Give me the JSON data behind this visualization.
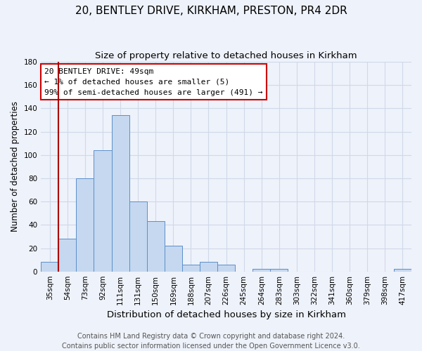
{
  "title": "20, BENTLEY DRIVE, KIRKHAM, PRESTON, PR4 2DR",
  "subtitle": "Size of property relative to detached houses in Kirkham",
  "xlabel": "Distribution of detached houses by size in Kirkham",
  "ylabel": "Number of detached properties",
  "categories": [
    "35sqm",
    "54sqm",
    "73sqm",
    "92sqm",
    "111sqm",
    "131sqm",
    "150sqm",
    "169sqm",
    "188sqm",
    "207sqm",
    "226sqm",
    "245sqm",
    "264sqm",
    "283sqm",
    "303sqm",
    "322sqm",
    "341sqm",
    "360sqm",
    "379sqm",
    "398sqm",
    "417sqm"
  ],
  "values": [
    8,
    28,
    80,
    104,
    134,
    60,
    43,
    22,
    6,
    8,
    6,
    0,
    2,
    2,
    0,
    0,
    0,
    0,
    0,
    0,
    2
  ],
  "bar_color": "#c5d8f0",
  "bar_edge_color": "#5b8fc9",
  "background_color": "#eef2fa",
  "grid_color": "#d0d8e8",
  "vline_color": "#aa0000",
  "annotation_text": "20 BENTLEY DRIVE: 49sqm\n← 1% of detached houses are smaller (5)\n99% of semi-detached houses are larger (491) →",
  "annotation_box_color": "#ffffff",
  "annotation_box_edge": "#cc0000",
  "ylim": [
    0,
    180
  ],
  "yticks": [
    0,
    20,
    40,
    60,
    80,
    100,
    120,
    140,
    160,
    180
  ],
  "footer_line1": "Contains HM Land Registry data © Crown copyright and database right 2024.",
  "footer_line2": "Contains public sector information licensed under the Open Government Licence v3.0.",
  "title_fontsize": 11,
  "subtitle_fontsize": 9.5,
  "xlabel_fontsize": 9.5,
  "ylabel_fontsize": 8.5,
  "tick_fontsize": 7.5,
  "annotation_fontsize": 8,
  "footer_fontsize": 7
}
